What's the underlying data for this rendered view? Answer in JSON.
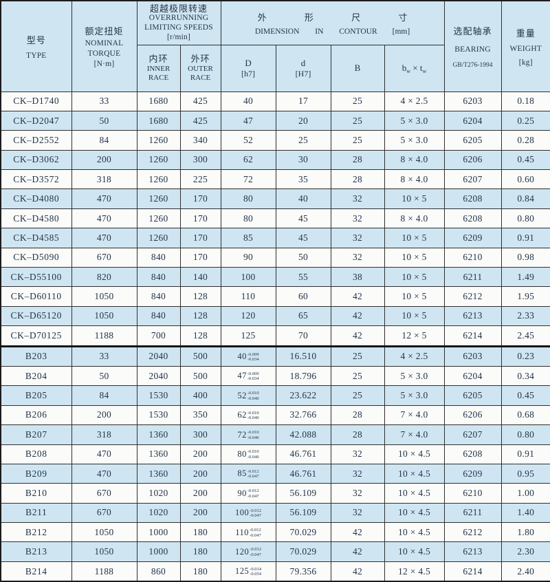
{
  "header": {
    "type": {
      "cn": "型号",
      "en": "TYPE"
    },
    "torque": {
      "cn": "额定扭矩",
      "en1": "NOMINAL",
      "en2": "TORQUE",
      "unit": "[N·m]"
    },
    "speeds": {
      "cn": "超越极限转速",
      "en1": "OVERRUNNING",
      "en2": "LIMITING SPEEDS",
      "unit": "[r/min]"
    },
    "inner": {
      "cn": "内环",
      "en1": "INNER",
      "en2": "RACE"
    },
    "outer": {
      "cn": "外环",
      "en1": "OUTER",
      "en2": "RACE"
    },
    "dimension": {
      "cn": "外 形 尺 寸",
      "en": "DIMENSION IN CONTOUR",
      "unit": "[mm]"
    },
    "colD": {
      "label": "D",
      "fit": "[h7]"
    },
    "cold": {
      "label": "d",
      "fit": "[H7]"
    },
    "colB": {
      "label": "B"
    },
    "colbt": {
      "b": "b",
      "bsub": "w",
      "times": "×",
      "t": "t",
      "tsub": "w"
    },
    "bearing": {
      "cn": "选配轴承",
      "en": "BEARING",
      "std": "GB/T276-1994"
    },
    "weight": {
      "cn": "重量",
      "en": "WEIGHT",
      "unit": "[kg]"
    }
  },
  "colors": {
    "row_blue": "#cfe6f2",
    "row_white": "#fbfbf9",
    "text": "#233448",
    "border": "#2e2e2e"
  },
  "sections": [
    {
      "id": "ck",
      "rows": [
        {
          "type": "CK–D1740",
          "torque": "33",
          "inner": "1680",
          "outer": "425",
          "D": "40",
          "d": "17",
          "B": "25",
          "bt": "4 × 2.5",
          "bearing": "6203",
          "weight": "0.18"
        },
        {
          "type": "CK–D2047",
          "torque": "50",
          "inner": "1680",
          "outer": "425",
          "D": "47",
          "d": "20",
          "B": "25",
          "bt": "5 × 3.0",
          "bearing": "6204",
          "weight": "0.25"
        },
        {
          "type": "CK–D2552",
          "torque": "84",
          "inner": "1260",
          "outer": "340",
          "D": "52",
          "d": "25",
          "B": "25",
          "bt": "5 × 3.0",
          "bearing": "6205",
          "weight": "0.28"
        },
        {
          "type": "CK–D3062",
          "torque": "200",
          "inner": "1260",
          "outer": "300",
          "D": "62",
          "d": "30",
          "B": "28",
          "bt": "8 × 4.0",
          "bearing": "6206",
          "weight": "0.45"
        },
        {
          "type": "CK–D3572",
          "torque": "318",
          "inner": "1260",
          "outer": "225",
          "D": "72",
          "d": "35",
          "B": "28",
          "bt": "8 × 4.0",
          "bearing": "6207",
          "weight": "0.60"
        },
        {
          "type": "CK–D4080",
          "torque": "470",
          "inner": "1260",
          "outer": "170",
          "D": "80",
          "d": "40",
          "B": "32",
          "bt": "10 × 5",
          "bearing": "6208",
          "weight": "0.84"
        },
        {
          "type": "CK–D4580",
          "torque": "470",
          "inner": "1260",
          "outer": "170",
          "D": "80",
          "d": "45",
          "B": "32",
          "bt": "8 × 4.0",
          "bearing": "6208",
          "weight": "0.80"
        },
        {
          "type": "CK–D4585",
          "torque": "470",
          "inner": "1260",
          "outer": "170",
          "D": "85",
          "d": "45",
          "B": "32",
          "bt": "10 × 5",
          "bearing": "6209",
          "weight": "0.91"
        },
        {
          "type": "CK–D5090",
          "torque": "670",
          "inner": "840",
          "outer": "170",
          "D": "90",
          "d": "50",
          "B": "32",
          "bt": "10 × 5",
          "bearing": "6210",
          "weight": "0.98"
        },
        {
          "type": "CK–D55100",
          "torque": "820",
          "inner": "840",
          "outer": "140",
          "D": "100",
          "d": "55",
          "B": "38",
          "bt": "10 × 5",
          "bearing": "6211",
          "weight": "1.49"
        },
        {
          "type": "CK–D60110",
          "torque": "1050",
          "inner": "840",
          "outer": "128",
          "D": "110",
          "d": "60",
          "B": "42",
          "bt": "10 × 5",
          "bearing": "6212",
          "weight": "1.95"
        },
        {
          "type": "CK–D65120",
          "torque": "1050",
          "inner": "840",
          "outer": "128",
          "D": "120",
          "d": "65",
          "B": "42",
          "bt": "10 × 5",
          "bearing": "6213",
          "weight": "2.33"
        },
        {
          "type": "CK–D70125",
          "torque": "1188",
          "inner": "700",
          "outer": "128",
          "D": "125",
          "d": "70",
          "B": "42",
          "bt": "12 × 5",
          "bearing": "6214",
          "weight": "2.45"
        }
      ]
    },
    {
      "id": "b",
      "rows": [
        {
          "type": "B203",
          "torque": "33",
          "inner": "2040",
          "outer": "500",
          "D": "40",
          "D_tol": [
            "-0.009",
            "-0.034"
          ],
          "d": "16.510",
          "B": "25",
          "bt": "4 × 2.5",
          "bearing": "6203",
          "weight": "0.23"
        },
        {
          "type": "B204",
          "torque": "50",
          "inner": "2040",
          "outer": "500",
          "D": "47",
          "D_tol": [
            "-0.009",
            "-0.034"
          ],
          "d": "18.796",
          "B": "25",
          "bt": "5 × 3.0",
          "bearing": "6204",
          "weight": "0.34"
        },
        {
          "type": "B205",
          "torque": "84",
          "inner": "1530",
          "outer": "400",
          "D": "52",
          "D_tol": [
            "-0.010",
            "-0.040"
          ],
          "d": "23.622",
          "B": "25",
          "bt": "5 × 3.0",
          "bearing": "6205",
          "weight": "0.45"
        },
        {
          "type": "B206",
          "torque": "200",
          "inner": "1530",
          "outer": "350",
          "D": "62",
          "D_tol": [
            "-0.010",
            "-0.040"
          ],
          "d": "32.766",
          "B": "28",
          "bt": "7 × 4.0",
          "bearing": "6206",
          "weight": "0.68"
        },
        {
          "type": "B207",
          "torque": "318",
          "inner": "1360",
          "outer": "300",
          "D": "72",
          "D_tol": [
            "-0.010",
            "-0.040"
          ],
          "d": "42.088",
          "B": "28",
          "bt": "7 × 4.0",
          "bearing": "6207",
          "weight": "0.80"
        },
        {
          "type": "B208",
          "torque": "470",
          "inner": "1360",
          "outer": "200",
          "D": "80",
          "D_tol": [
            "-0.010",
            "-0.040"
          ],
          "d": "46.761",
          "B": "32",
          "bt": "10 × 4.5",
          "bearing": "6208",
          "weight": "0.91"
        },
        {
          "type": "B209",
          "torque": "470",
          "inner": "1360",
          "outer": "200",
          "D": "85",
          "D_tol": [
            "-0.012",
            "-0.047"
          ],
          "d": "46.761",
          "B": "32",
          "bt": "10 × 4.5",
          "bearing": "6209",
          "weight": "0.95"
        },
        {
          "type": "B210",
          "torque": "670",
          "inner": "1020",
          "outer": "200",
          "D": "90",
          "D_tol": [
            "-0.012",
            "-0.047"
          ],
          "d": "56.109",
          "B": "32",
          "bt": "10 × 4.5",
          "bearing": "6210",
          "weight": "1.00"
        },
        {
          "type": "B211",
          "torque": "670",
          "inner": "1020",
          "outer": "200",
          "D": "100",
          "D_tol": [
            "-0.012",
            "-0.047"
          ],
          "d": "56.109",
          "B": "32",
          "bt": "10 × 4.5",
          "bearing": "6211",
          "weight": "1.40"
        },
        {
          "type": "B212",
          "torque": "1050",
          "inner": "1000",
          "outer": "180",
          "D": "110",
          "D_tol": [
            "-0.012",
            "-0.047"
          ],
          "d": "70.029",
          "B": "42",
          "bt": "10 × 4.5",
          "bearing": "6212",
          "weight": "1.80"
        },
        {
          "type": "B213",
          "torque": "1050",
          "inner": "1000",
          "outer": "180",
          "D": "120",
          "D_tol": [
            "-0.012",
            "-0.047"
          ],
          "d": "70.029",
          "B": "42",
          "bt": "10 × 4.5",
          "bearing": "6213",
          "weight": "2.30"
        },
        {
          "type": "B214",
          "torque": "1188",
          "inner": "860",
          "outer": "180",
          "D": "125",
          "D_tol": [
            "-0.014",
            "-0.054"
          ],
          "d": "79.356",
          "B": "42",
          "bt": "12 × 4.5",
          "bearing": "6214",
          "weight": "2.40"
        }
      ]
    }
  ]
}
